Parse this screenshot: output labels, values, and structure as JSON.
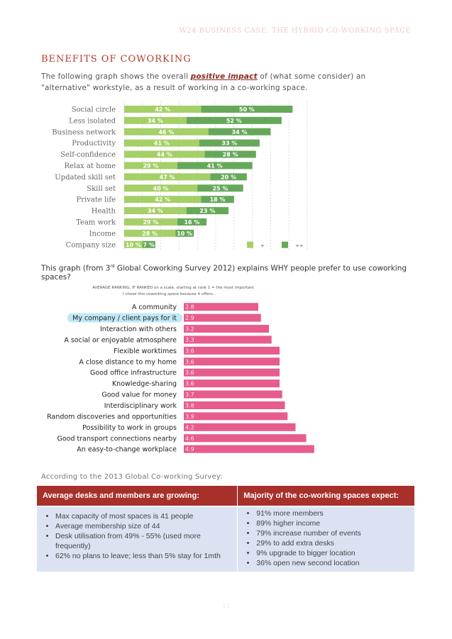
{
  "header": {
    "title": "W24 Business Case: The Hybrid Co-working Space"
  },
  "section": {
    "title": "Benefits of Coworking",
    "intro_before": "The following graph shows the overall ",
    "intro_emph": "positive impact",
    "intro_after": " of (what some consider) an \"alternative\" workstyle, as a result of working in a co-working space."
  },
  "chart_data": [
    {
      "type": "bar",
      "stacked": true,
      "orientation": "horizontal",
      "categories": [
        "Social circle",
        "Less isolated",
        "Business network",
        "Productivity",
        "Self-confidence",
        "Relax at home",
        "Updated skill set",
        "Skill set",
        "Private life",
        "Health",
        "Team work",
        "Income",
        "Company size"
      ],
      "series": [
        {
          "name": "+",
          "color": "#a5cf67",
          "values": [
            42,
            34,
            46,
            41,
            44,
            29,
            47,
            40,
            42,
            34,
            29,
            28,
            10
          ]
        },
        {
          "name": "++",
          "color": "#66a85a",
          "values": [
            50,
            52,
            34,
            33,
            28,
            41,
            20,
            25,
            18,
            23,
            16,
            10,
            7
          ]
        }
      ],
      "value_suffix": " %",
      "xlim": [
        0,
        100
      ],
      "grid": true,
      "legend_position": "bottom-right"
    },
    {
      "type": "bar",
      "orientation": "horizontal",
      "title": "AVERAGE RANKING, IF RANKED on a scale, starting at rank 1 = the most important",
      "subtitle": "I chose this coworking space because it offers...",
      "categories": [
        "A community",
        "My company / client pays for it",
        "Interaction with others",
        "A social or enjoyable atmosphere",
        "Flexible worktimes",
        "A close distance to my home",
        "Good office infrastructure",
        "Knowledge-sharing",
        "Good value for money",
        "Interdisciplinary work",
        "Random discoveries and opportunities",
        "Possibility to work in groups",
        "Good transport connections nearby",
        "An easy-to-change workplace"
      ],
      "values": [
        2.8,
        2.9,
        3.2,
        3.3,
        3.6,
        3.6,
        3.6,
        3.6,
        3.7,
        3.8,
        3.9,
        4.2,
        4.6,
        4.9
      ],
      "highlighted_category": "My company / client pays for it",
      "bar_color": "#e75b8e",
      "highlight_color": "#bfe9f7"
    }
  ],
  "graph2": {
    "intro_before": "This graph (from 3",
    "intro_sup": "rd",
    "intro_after": " Global Coworking Survey 2012) explains WHY people prefer to use coworking spaces?"
  },
  "survey": {
    "intro": "According to the 2013 Global Co-working Survey:",
    "left_header": "Average desks and members are growing:",
    "right_header": "Majority of the co-working spaces expect:",
    "left_items": [
      "Max capacity of most spaces is 41 people",
      "Average membership size of 44",
      "Desk utilisation from 49% - 55% (used more frequently)",
      "62% no plans to leave; less than 5% stay for 1mth"
    ],
    "right_items": [
      "91% more members",
      "89% higher income",
      "79% increase number of events",
      "29% to add extra desks",
      "9% upgrade to bigger location",
      "36% open new second location"
    ]
  },
  "page_number": "11"
}
